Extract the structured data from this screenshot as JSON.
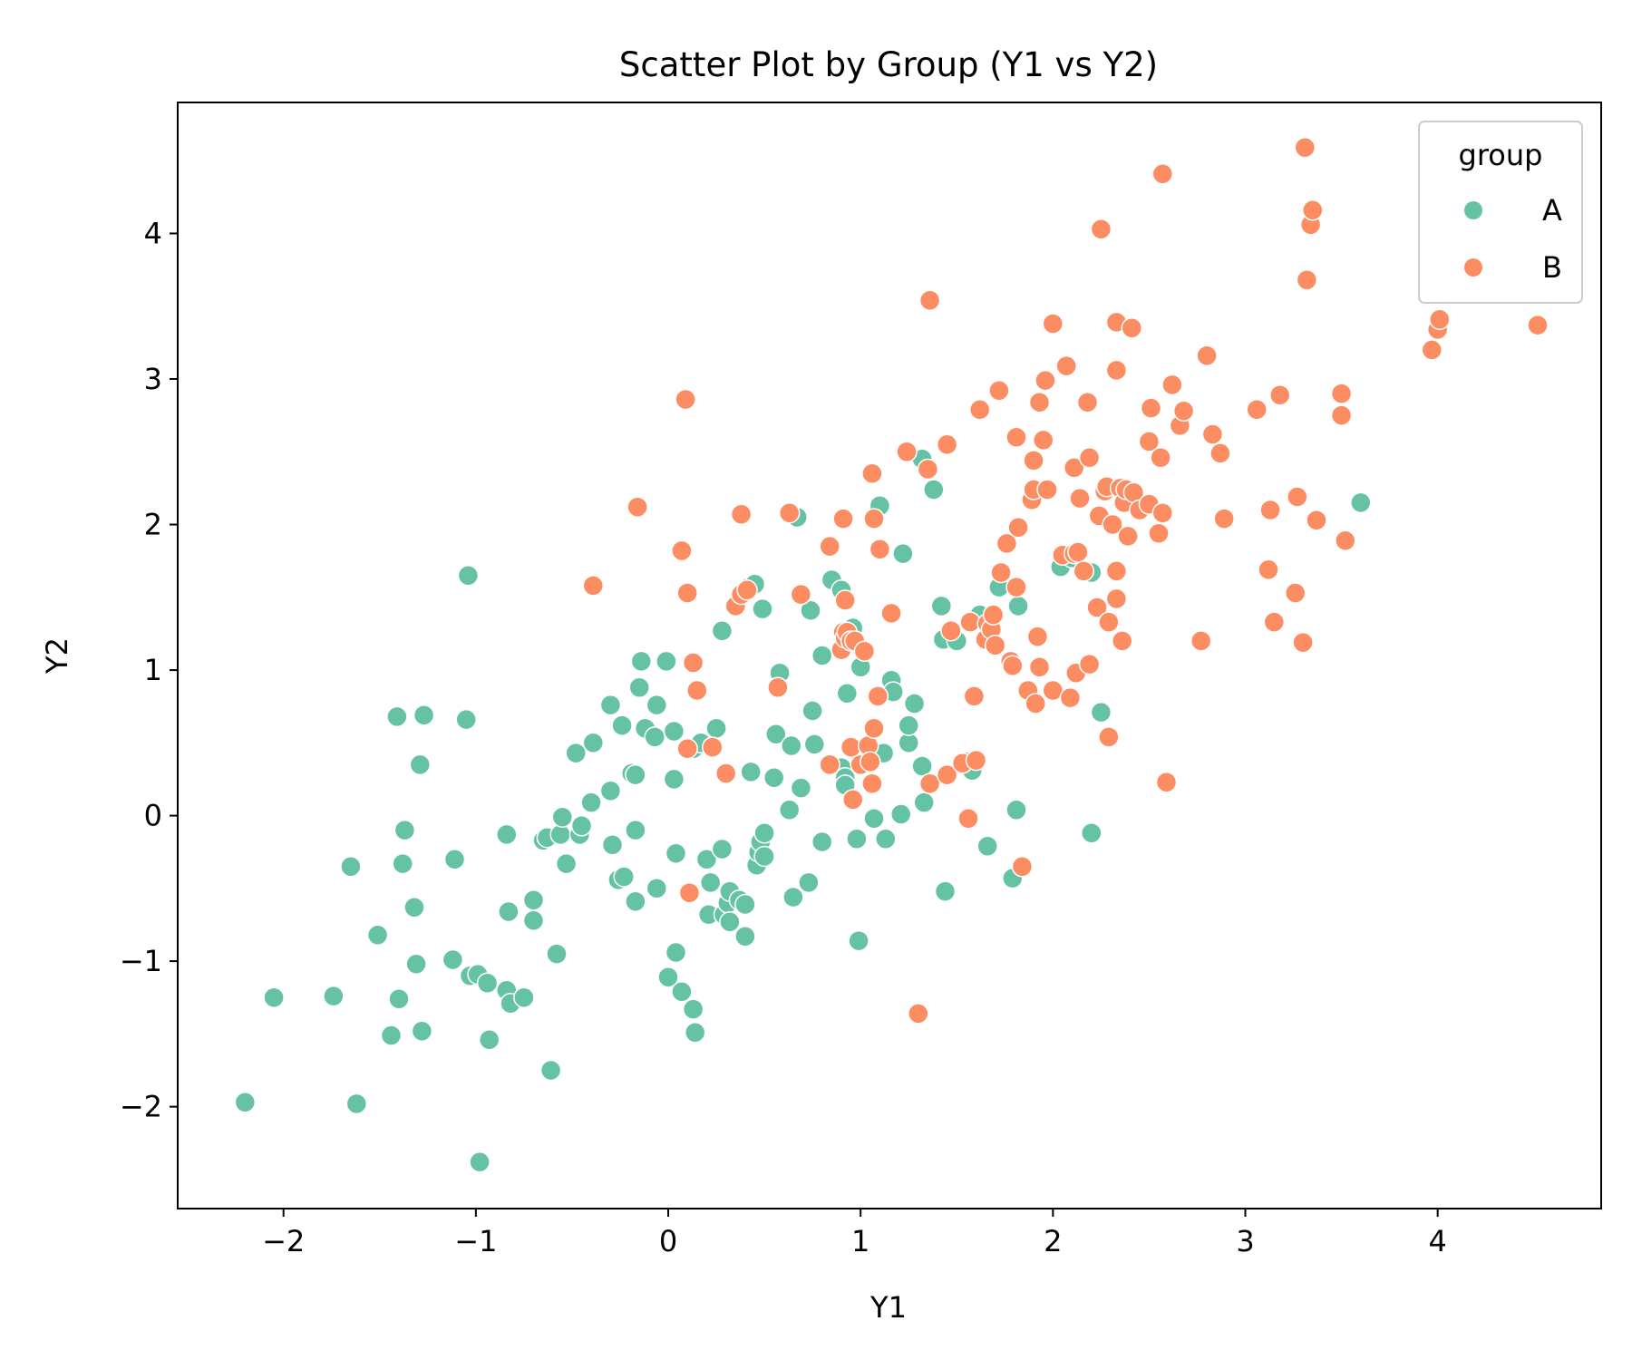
{
  "chart_data": {
    "type": "scatter",
    "title": "Scatter Plot by Group (Y1 vs Y2)",
    "xlabel": "Y1",
    "ylabel": "Y2",
    "xlim": [
      -2.55,
      4.85
    ],
    "ylim": [
      -2.7,
      4.9
    ],
    "xticks": [
      -2,
      -1,
      0,
      1,
      2,
      3,
      4
    ],
    "yticks": [
      -2,
      -1,
      0,
      1,
      2,
      3,
      4
    ],
    "xtick_labels": [
      "−2",
      "−1",
      "0",
      "1",
      "2",
      "3",
      "4"
    ],
    "ytick_labels": [
      "−2",
      "−1",
      "0",
      "1",
      "2",
      "3",
      "4"
    ],
    "grid": false,
    "legend": {
      "title": "group",
      "placement": "upper-right"
    },
    "series": [
      {
        "name": "A",
        "color": "#66c2a5",
        "points": [
          [
            -2.2,
            -1.97
          ],
          [
            -2.05,
            -1.25
          ],
          [
            -1.74,
            -1.24
          ],
          [
            -1.65,
            -0.35
          ],
          [
            -1.62,
            -1.98
          ],
          [
            -1.51,
            -0.82
          ],
          [
            -1.44,
            -1.51
          ],
          [
            -1.41,
            0.68
          ],
          [
            -1.4,
            -1.26
          ],
          [
            -1.38,
            -0.33
          ],
          [
            -1.37,
            -0.1
          ],
          [
            -1.32,
            -0.63
          ],
          [
            -1.31,
            -1.02
          ],
          [
            -1.29,
            0.35
          ],
          [
            -1.28,
            -1.48
          ],
          [
            -1.27,
            0.69
          ],
          [
            -1.12,
            -0.99
          ],
          [
            -1.11,
            -0.3
          ],
          [
            -1.05,
            0.66
          ],
          [
            -1.04,
            1.65
          ],
          [
            -1.03,
            -1.1
          ],
          [
            -0.99,
            -1.09
          ],
          [
            -0.98,
            -2.38
          ],
          [
            -0.94,
            -1.15
          ],
          [
            -0.93,
            -1.54
          ],
          [
            -0.84,
            -0.13
          ],
          [
            -0.84,
            -1.2
          ],
          [
            -0.83,
            -0.66
          ],
          [
            -0.82,
            -1.29
          ],
          [
            -0.75,
            -1.25
          ],
          [
            -0.7,
            -0.58
          ],
          [
            -0.7,
            -0.72
          ],
          [
            -0.65,
            -0.17
          ],
          [
            -0.63,
            -0.15
          ],
          [
            -0.61,
            -1.75
          ],
          [
            -0.58,
            -0.95
          ],
          [
            -0.56,
            -0.13
          ],
          [
            -0.55,
            -0.01
          ],
          [
            -0.53,
            -0.33
          ],
          [
            -0.48,
            0.43
          ],
          [
            -0.46,
            -0.13
          ],
          [
            -0.45,
            -0.07
          ],
          [
            -0.4,
            0.09
          ],
          [
            -0.39,
            0.5
          ],
          [
            -0.3,
            0.17
          ],
          [
            -0.3,
            0.76
          ],
          [
            -0.29,
            -0.2
          ],
          [
            -0.26,
            -0.44
          ],
          [
            -0.24,
            0.62
          ],
          [
            -0.23,
            -0.42
          ],
          [
            -0.19,
            0.29
          ],
          [
            -0.17,
            -0.1
          ],
          [
            -0.17,
            0.28
          ],
          [
            -0.17,
            -0.59
          ],
          [
            -0.15,
            0.88
          ],
          [
            -0.14,
            1.06
          ],
          [
            -0.12,
            0.6
          ],
          [
            -0.07,
            0.54
          ],
          [
            -0.06,
            0.76
          ],
          [
            -0.06,
            -0.5
          ],
          [
            -0.01,
            1.06
          ],
          [
            0.0,
            -1.11
          ],
          [
            0.03,
            0.25
          ],
          [
            0.03,
            0.58
          ],
          [
            0.04,
            -0.26
          ],
          [
            0.04,
            -0.94
          ],
          [
            0.07,
            -1.21
          ],
          [
            0.13,
            0.46
          ],
          [
            0.13,
            -1.33
          ],
          [
            0.14,
            -1.49
          ],
          [
            0.17,
            0.5
          ],
          [
            0.2,
            -0.3
          ],
          [
            0.21,
            -0.68
          ],
          [
            0.22,
            -0.46
          ],
          [
            0.25,
            0.6
          ],
          [
            0.28,
            -0.23
          ],
          [
            0.28,
            1.27
          ],
          [
            0.29,
            -0.68
          ],
          [
            0.31,
            -0.6
          ],
          [
            0.32,
            -0.52
          ],
          [
            0.32,
            -0.73
          ],
          [
            0.37,
            -0.58
          ],
          [
            0.4,
            -0.61
          ],
          [
            0.4,
            -0.83
          ],
          [
            0.42,
            1.57
          ],
          [
            0.43,
            0.3
          ],
          [
            0.45,
            1.59
          ],
          [
            0.46,
            -0.34
          ],
          [
            0.47,
            -0.25
          ],
          [
            0.48,
            -0.18
          ],
          [
            0.49,
            1.42
          ],
          [
            0.5,
            -0.12
          ],
          [
            0.5,
            -0.28
          ],
          [
            0.55,
            0.26
          ],
          [
            0.56,
            0.56
          ],
          [
            0.58,
            0.98
          ],
          [
            0.63,
            0.04
          ],
          [
            0.64,
            0.48
          ],
          [
            0.65,
            -0.56
          ],
          [
            0.67,
            2.05
          ],
          [
            0.69,
            0.19
          ],
          [
            0.73,
            -0.46
          ],
          [
            0.74,
            1.41
          ],
          [
            0.75,
            0.72
          ],
          [
            0.76,
            0.49
          ],
          [
            0.8,
            1.1
          ],
          [
            0.8,
            -0.18
          ],
          [
            0.85,
            1.62
          ],
          [
            0.9,
            1.55
          ],
          [
            0.9,
            0.33
          ],
          [
            0.92,
            0.26
          ],
          [
            0.92,
            0.21
          ],
          [
            0.93,
            0.84
          ],
          [
            0.96,
            1.29
          ],
          [
            0.98,
            -0.16
          ],
          [
            0.99,
            -0.86
          ],
          [
            1.0,
            1.02
          ],
          [
            1.01,
            1.14
          ],
          [
            1.05,
            0.4
          ],
          [
            1.07,
            -0.02
          ],
          [
            1.1,
            2.13
          ],
          [
            1.12,
            0.43
          ],
          [
            1.13,
            -0.16
          ],
          [
            1.16,
            0.93
          ],
          [
            1.17,
            0.85
          ],
          [
            1.21,
            0.01
          ],
          [
            1.22,
            1.8
          ],
          [
            1.25,
            0.5
          ],
          [
            1.25,
            0.62
          ],
          [
            1.28,
            0.77
          ],
          [
            1.32,
            2.45
          ],
          [
            1.32,
            0.34
          ],
          [
            1.33,
            0.09
          ],
          [
            1.38,
            2.24
          ],
          [
            1.42,
            1.44
          ],
          [
            1.43,
            1.21
          ],
          [
            1.44,
            -0.52
          ],
          [
            1.5,
            1.2
          ],
          [
            1.55,
            0.37
          ],
          [
            1.58,
            0.31
          ],
          [
            1.62,
            1.38
          ],
          [
            1.66,
            -0.21
          ],
          [
            1.72,
            1.57
          ],
          [
            1.79,
            -0.43
          ],
          [
            1.81,
            0.04
          ],
          [
            1.82,
            1.44
          ],
          [
            2.04,
            1.71
          ],
          [
            2.1,
            1.77
          ],
          [
            2.2,
            1.67
          ],
          [
            2.2,
            -0.12
          ],
          [
            2.25,
            0.71
          ],
          [
            3.6,
            2.15
          ]
        ]
      },
      {
        "name": "B",
        "color": "#fc8d62",
        "points": [
          [
            -0.39,
            1.58
          ],
          [
            -0.16,
            2.12
          ],
          [
            0.07,
            1.82
          ],
          [
            0.09,
            2.86
          ],
          [
            0.1,
            0.46
          ],
          [
            0.1,
            1.53
          ],
          [
            0.11,
            -0.53
          ],
          [
            0.13,
            1.05
          ],
          [
            0.15,
            0.86
          ],
          [
            0.23,
            0.47
          ],
          [
            0.3,
            0.29
          ],
          [
            0.35,
            1.44
          ],
          [
            0.38,
            2.07
          ],
          [
            0.38,
            1.52
          ],
          [
            0.41,
            1.55
          ],
          [
            0.57,
            0.88
          ],
          [
            0.63,
            2.08
          ],
          [
            0.69,
            1.52
          ],
          [
            0.84,
            1.85
          ],
          [
            0.84,
            0.35
          ],
          [
            0.9,
            1.14
          ],
          [
            0.91,
            2.04
          ],
          [
            0.91,
            1.26
          ],
          [
            0.92,
            1.22
          ],
          [
            0.92,
            1.48
          ],
          [
            0.93,
            1.26
          ],
          [
            0.95,
            1.2
          ],
          [
            0.97,
            1.2
          ],
          [
            0.95,
            0.47
          ],
          [
            0.96,
            0.11
          ],
          [
            1.0,
            0.35
          ],
          [
            1.02,
            1.13
          ],
          [
            1.04,
            0.48
          ],
          [
            1.05,
            0.37
          ],
          [
            1.06,
            2.35
          ],
          [
            1.06,
            0.22
          ],
          [
            1.07,
            0.6
          ],
          [
            1.07,
            2.04
          ],
          [
            1.09,
            0.82
          ],
          [
            1.1,
            1.83
          ],
          [
            1.16,
            1.39
          ],
          [
            1.24,
            2.5
          ],
          [
            1.3,
            -1.36
          ],
          [
            1.35,
            2.38
          ],
          [
            1.36,
            3.54
          ],
          [
            1.36,
            0.22
          ],
          [
            1.45,
            0.28
          ],
          [
            1.45,
            2.55
          ],
          [
            1.47,
            1.27
          ],
          [
            1.53,
            0.36
          ],
          [
            1.56,
            -0.02
          ],
          [
            1.57,
            1.33
          ],
          [
            1.59,
            0.82
          ],
          [
            1.6,
            0.38
          ],
          [
            1.62,
            2.79
          ],
          [
            1.65,
            1.21
          ],
          [
            1.66,
            1.32
          ],
          [
            1.68,
            1.28
          ],
          [
            1.69,
            1.38
          ],
          [
            1.7,
            1.17
          ],
          [
            1.72,
            2.92
          ],
          [
            1.73,
            1.67
          ],
          [
            1.76,
            1.87
          ],
          [
            1.78,
            1.06
          ],
          [
            1.79,
            1.03
          ],
          [
            1.81,
            2.6
          ],
          [
            1.81,
            1.57
          ],
          [
            1.82,
            1.98
          ],
          [
            1.84,
            -0.35
          ],
          [
            1.87,
            0.86
          ],
          [
            1.89,
            2.17
          ],
          [
            1.9,
            2.24
          ],
          [
            1.9,
            2.44
          ],
          [
            1.91,
            0.77
          ],
          [
            1.92,
            1.23
          ],
          [
            1.93,
            2.84
          ],
          [
            1.93,
            1.02
          ],
          [
            1.95,
            2.58
          ],
          [
            1.96,
            2.99
          ],
          [
            1.97,
            2.24
          ],
          [
            2.0,
            3.38
          ],
          [
            2.0,
            0.86
          ],
          [
            2.05,
            1.79
          ],
          [
            2.07,
            3.09
          ],
          [
            2.09,
            0.81
          ],
          [
            2.11,
            1.8
          ],
          [
            2.11,
            2.39
          ],
          [
            2.12,
            0.98
          ],
          [
            2.13,
            1.81
          ],
          [
            2.14,
            2.18
          ],
          [
            2.16,
            1.68
          ],
          [
            2.18,
            2.84
          ],
          [
            2.19,
            2.46
          ],
          [
            2.19,
            1.04
          ],
          [
            2.23,
            1.43
          ],
          [
            2.24,
            2.06
          ],
          [
            2.25,
            4.03
          ],
          [
            2.27,
            2.23
          ],
          [
            2.28,
            2.26
          ],
          [
            2.29,
            1.33
          ],
          [
            2.29,
            0.54
          ],
          [
            2.31,
            2.0
          ],
          [
            2.33,
            1.68
          ],
          [
            2.33,
            1.49
          ],
          [
            2.33,
            3.39
          ],
          [
            2.33,
            3.06
          ],
          [
            2.35,
            2.25
          ],
          [
            2.36,
            1.2
          ],
          [
            2.37,
            2.15
          ],
          [
            2.38,
            2.24
          ],
          [
            2.39,
            1.92
          ],
          [
            2.41,
            3.35
          ],
          [
            2.42,
            2.22
          ],
          [
            2.45,
            2.1
          ],
          [
            2.5,
            2.14
          ],
          [
            2.5,
            2.57
          ],
          [
            2.51,
            2.8
          ],
          [
            2.55,
            1.94
          ],
          [
            2.56,
            2.46
          ],
          [
            2.57,
            2.08
          ],
          [
            2.57,
            4.41
          ],
          [
            2.59,
            0.23
          ],
          [
            2.62,
            2.96
          ],
          [
            2.66,
            2.68
          ],
          [
            2.68,
            2.78
          ],
          [
            2.77,
            1.2
          ],
          [
            2.8,
            3.16
          ],
          [
            2.83,
            2.62
          ],
          [
            2.87,
            2.49
          ],
          [
            2.89,
            2.04
          ],
          [
            3.06,
            2.79
          ],
          [
            3.12,
            1.69
          ],
          [
            3.13,
            2.1
          ],
          [
            3.15,
            1.33
          ],
          [
            3.18,
            2.89
          ],
          [
            3.26,
            1.53
          ],
          [
            3.27,
            2.19
          ],
          [
            3.3,
            1.19
          ],
          [
            3.31,
            4.59
          ],
          [
            3.32,
            3.68
          ],
          [
            3.34,
            4.06
          ],
          [
            3.35,
            4.16
          ],
          [
            3.37,
            2.03
          ],
          [
            3.5,
            2.9
          ],
          [
            3.5,
            2.75
          ],
          [
            3.52,
            1.89
          ],
          [
            3.97,
            3.2
          ],
          [
            4.0,
            3.34
          ],
          [
            4.01,
            3.41
          ],
          [
            4.52,
            3.37
          ]
        ]
      }
    ]
  }
}
